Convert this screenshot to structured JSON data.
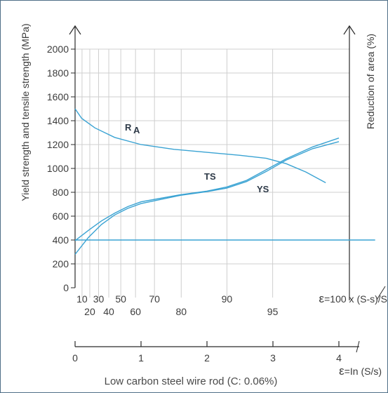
{
  "chart_data": {
    "type": "line",
    "ylabel_left": "Yield strength and tensile strength (MPa)",
    "ylabel_right": "Reduction of area (%)",
    "y_ticks": [
      0,
      200,
      400,
      600,
      800,
      1000,
      1200,
      1400,
      1600,
      1800,
      2000
    ],
    "ylim": [
      0,
      2000
    ],
    "strain_axis": {
      "label_prefix": "ε",
      "label": "=In (S/s)",
      "ticks": [
        0,
        1,
        2,
        3,
        4
      ],
      "xlim": [
        0,
        4.2
      ]
    },
    "reduction_axis": {
      "label_prefix": "ε",
      "label": "=100 x (S-s)/S",
      "ticks_top": [
        10,
        30,
        50,
        70,
        90
      ],
      "ticks_bottom": [
        20,
        40,
        60,
        80,
        95
      ]
    },
    "grid": true,
    "caption": "Low carbon steel wire rod (C: 0.06%)",
    "series": [
      {
        "name": "R",
        "name_sub": "A",
        "points": [
          [
            0,
            1500
          ],
          [
            0.1,
            1420
          ],
          [
            0.3,
            1340
          ],
          [
            0.6,
            1260
          ],
          [
            1.0,
            1200
          ],
          [
            1.5,
            1160
          ],
          [
            2.0,
            1135
          ],
          [
            2.5,
            1110
          ],
          [
            2.9,
            1085
          ],
          [
            3.2,
            1040
          ],
          [
            3.5,
            970
          ],
          [
            3.8,
            880
          ]
        ]
      },
      {
        "name": "TS",
        "points": [
          [
            0,
            395
          ],
          [
            0.2,
            480
          ],
          [
            0.4,
            560
          ],
          [
            0.6,
            625
          ],
          [
            0.8,
            680
          ],
          [
            1.0,
            720
          ],
          [
            1.3,
            750
          ],
          [
            1.6,
            780
          ],
          [
            2.0,
            810
          ],
          [
            2.3,
            845
          ],
          [
            2.6,
            900
          ],
          [
            2.9,
            990
          ],
          [
            3.2,
            1080
          ],
          [
            3.6,
            1180
          ],
          [
            4.0,
            1255
          ]
        ]
      },
      {
        "name": "YS",
        "points": [
          [
            0,
            280
          ],
          [
            0.2,
            420
          ],
          [
            0.4,
            530
          ],
          [
            0.6,
            610
          ],
          [
            0.8,
            665
          ],
          [
            1.0,
            705
          ],
          [
            1.3,
            740
          ],
          [
            1.6,
            775
          ],
          [
            2.0,
            805
          ],
          [
            2.3,
            835
          ],
          [
            2.6,
            890
          ],
          [
            2.9,
            975
          ],
          [
            3.2,
            1070
          ],
          [
            3.6,
            1165
          ],
          [
            4.0,
            1225
          ]
        ]
      },
      {
        "name": "",
        "points": [
          [
            0,
            400
          ],
          [
            4.55,
            400
          ]
        ]
      }
    ]
  }
}
